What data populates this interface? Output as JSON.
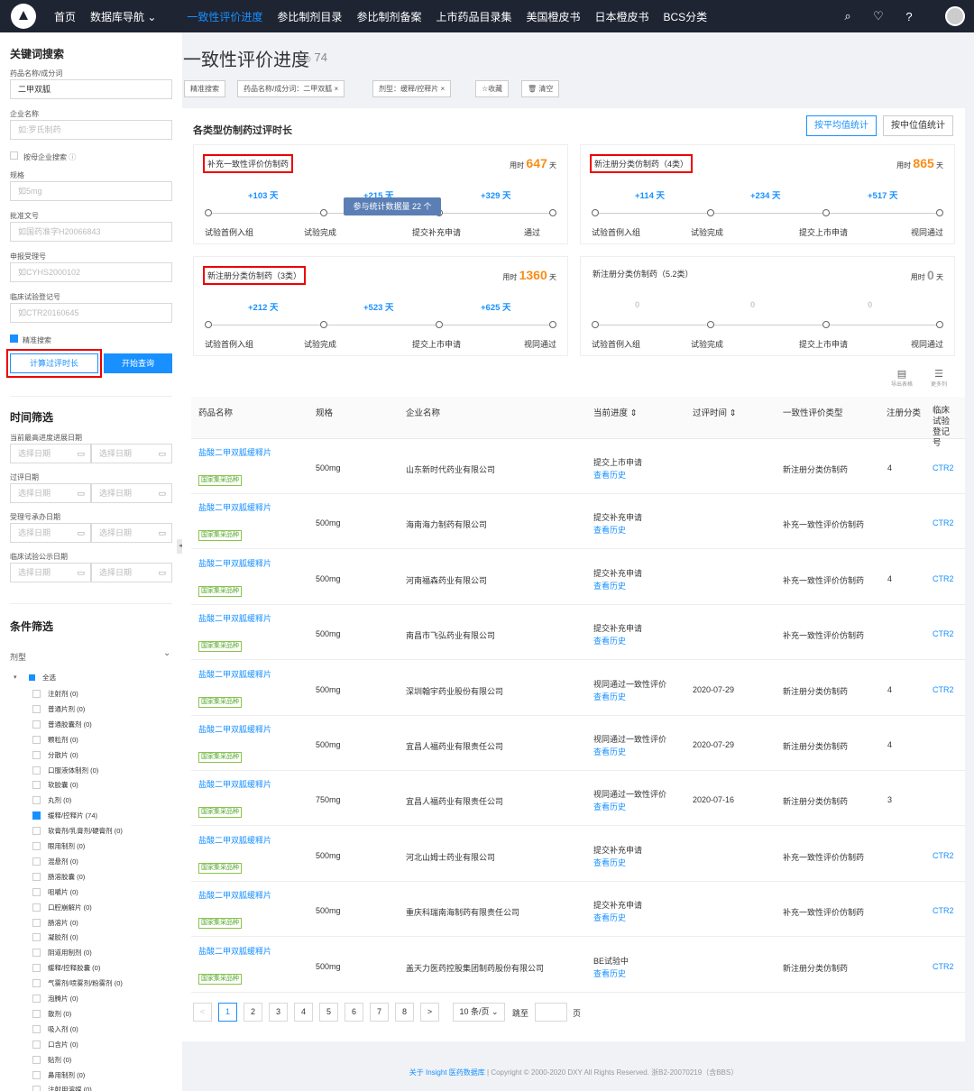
{
  "nav": {
    "items": [
      "首页",
      "数据库导航 ⌄",
      "一致性评价进度",
      "参比制剂目录",
      "参比制剂备案",
      "上市药品目录集",
      "美国橙皮书",
      "日本橙皮书",
      "BCS分类"
    ],
    "active_index": 2,
    "icons": [
      "search-icon",
      "bulb-icon",
      "help-icon",
      "user-avatar"
    ]
  },
  "sidebar": {
    "keyword_title": "关键词搜索",
    "drug_label": "药品名称/成分词",
    "drug_value": "二甲双胍",
    "company_label": "企业名称",
    "company_placeholder": "如:罗氏制药",
    "parent_company": "按母企业搜索",
    "spec_label": "规格",
    "spec_placeholder": "如5mg",
    "approval_label": "批准文号",
    "approval_placeholder": "如国药准字H20066843",
    "accept_label": "申报受理号",
    "accept_placeholder": "如CYHS2000102",
    "clinical_label": "临床试验登记号",
    "clinical_placeholder": "如CTR20160645",
    "exact_search": "精准搜索",
    "calc_button": "计算过评时长",
    "query_button": "开始查询",
    "time_title": "时间筛选",
    "time_fields": [
      "当前最高进度进展日期",
      "过评日期",
      "受理号承办日期",
      "临床试验公示日期"
    ],
    "date_placeholder": "选择日期",
    "cond_title": "条件筛选",
    "dosage_label": "剂型",
    "select_all": "全选",
    "dosage_items": [
      "注射剂 (0)",
      "普通片剂 (0)",
      "普通胶囊剂 (0)",
      "颗粒剂 (0)",
      "分散片 (0)",
      "口服液体制剂 (0)",
      "软胶囊 (0)",
      "丸剂 (0)",
      "缓释/控释片 (74)",
      "软膏剂/乳膏剂/硬膏剂 (0)",
      "眼用制剂 (0)",
      "混悬剂 (0)",
      "肠溶胶囊 (0)",
      "咀嚼片 (0)",
      "口腔崩解片 (0)",
      "肠溶片 (0)",
      "凝胶剂 (0)",
      "阴道用制剂 (0)",
      "缓释/控释胶囊 (0)",
      "气雾剂/喷雾剂/粉雾剂 (0)",
      "泡腾片 (0)",
      "散剂 (0)",
      "吸入剂 (0)",
      "口含片 (0)",
      "贴剂 (0)",
      "鼻用制剂 (0)",
      "注射用溶媒 (0)"
    ],
    "checked_index": 8
  },
  "main": {
    "title": "一致性评价进度",
    "count": "74",
    "tags": [
      "精准搜索",
      "药品名称/成分词：二甲双胍 ×",
      "剂型：缓释/控释片 ×",
      "☆收藏",
      "🗑 清空"
    ]
  },
  "stats": {
    "title": "各类型仿制药过评时长",
    "toggle_avg": "按平均值统计",
    "toggle_median": "按中位值统计",
    "tooltip": "参与统计数据量 22 个",
    "used_label": "用时",
    "day_unit": "天",
    "cards": [
      {
        "name": "补充一致性评价仿制药",
        "days": "647",
        "segs": [
          "+103 天",
          "+215 天",
          "+329 天"
        ],
        "steps": [
          "试验首例入组",
          "试验完成",
          "提交补充申请",
          "通过"
        ],
        "highlight": true,
        "zero": false
      },
      {
        "name": "新注册分类仿制药（4类）",
        "days": "865",
        "segs": [
          "+114 天",
          "+234 天",
          "+517 天"
        ],
        "steps": [
          "试验首例入组",
          "试验完成",
          "提交上市申请",
          "视同通过"
        ],
        "highlight": true,
        "zero": false
      },
      {
        "name": "新注册分类仿制药（3类）",
        "days": "1360",
        "segs": [
          "+212 天",
          "+523 天",
          "+625 天"
        ],
        "steps": [
          "试验首例入组",
          "试验完成",
          "提交上市申请",
          "视同通过"
        ],
        "highlight": true,
        "zero": false
      },
      {
        "name": "新注册分类仿制药（5.2类）",
        "days": "0",
        "segs": [
          "0",
          "0",
          "0"
        ],
        "steps": [
          "试验首例入组",
          "试验完成",
          "提交上市申请",
          "视同通过"
        ],
        "highlight": false,
        "zero": true
      }
    ],
    "export_labels": [
      "导出表格",
      "更多列"
    ]
  },
  "table": {
    "headers": [
      "药品名称",
      "规格",
      "企业名称",
      "当前进度 ⇕",
      "过评时间 ⇕",
      "一致性评价类型",
      "注册分类",
      "临床试验登记号"
    ],
    "drug_name": "盐酸二甲双胍缓释片",
    "badge": "国家集采品种",
    "history": "查看历史",
    "rows": [
      {
        "spec": "500mg",
        "company": "山东新时代药业有限公司",
        "progress": "提交上市申请",
        "date": "",
        "type": "新注册分类仿制药",
        "cat": "4",
        "ctr": "CTR2"
      },
      {
        "spec": "500mg",
        "company": "海南海力制药有限公司",
        "progress": "提交补充申请",
        "date": "",
        "type": "补充一致性评价仿制药",
        "cat": "",
        "ctr": "CTR2"
      },
      {
        "spec": "500mg",
        "company": "河南福森药业有限公司",
        "progress": "提交补充申请",
        "date": "",
        "type": "补充一致性评价仿制药",
        "cat": "4",
        "ctr": "CTR2"
      },
      {
        "spec": "500mg",
        "company": "南昌市飞弘药业有限公司",
        "progress": "提交补充申请",
        "date": "",
        "type": "补充一致性评价仿制药",
        "cat": "",
        "ctr": "CTR2"
      },
      {
        "spec": "500mg",
        "company": "深圳翰宇药业股份有限公司",
        "progress": "视同通过一致性评价",
        "date": "2020-07-29",
        "type": "新注册分类仿制药",
        "cat": "4",
        "ctr": "CTR2"
      },
      {
        "spec": "500mg",
        "company": "宜昌人福药业有限责任公司",
        "progress": "视同通过一致性评价",
        "date": "2020-07-29",
        "type": "新注册分类仿制药",
        "cat": "4",
        "ctr": ""
      },
      {
        "spec": "750mg",
        "company": "宜昌人福药业有限责任公司",
        "progress": "视同通过一致性评价",
        "date": "2020-07-16",
        "type": "新注册分类仿制药",
        "cat": "3",
        "ctr": ""
      },
      {
        "spec": "500mg",
        "company": "河北山姆士药业有限公司",
        "progress": "提交补充申请",
        "date": "",
        "type": "补充一致性评价仿制药",
        "cat": "",
        "ctr": "CTR2"
      },
      {
        "spec": "500mg",
        "company": "重庆科瑞南海制药有限责任公司",
        "progress": "提交补充申请",
        "date": "",
        "type": "补充一致性评价仿制药",
        "cat": "",
        "ctr": "CTR2"
      },
      {
        "spec": "500mg",
        "company": "盖天力医药控股集团制药股份有限公司",
        "progress": "BE试验中",
        "date": "",
        "type": "新注册分类仿制药",
        "cat": "",
        "ctr": "CTR2"
      }
    ]
  },
  "pagination": {
    "prev": "<",
    "next": ">",
    "pages": [
      "1",
      "2",
      "3",
      "4",
      "5",
      "6",
      "7",
      "8"
    ],
    "current": "1",
    "page_size": "10 条/页 ⌄",
    "goto": "跳至",
    "page_unit": "页"
  },
  "footer": {
    "link": "关于 Insight 医药数据库",
    "text": "| Copyright © 2000-2020 DXY All Rights Reserved. 浙B2-20070219（含BBS）"
  }
}
